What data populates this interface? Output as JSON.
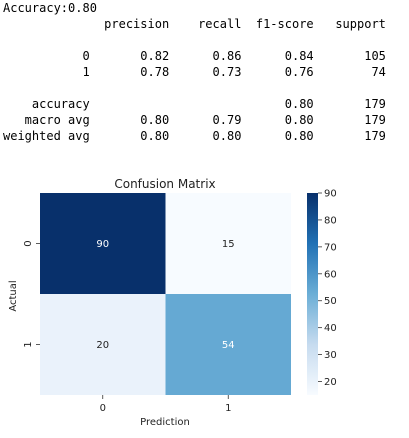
{
  "report": {
    "lines": [
      "Accuracy:0.80",
      "              precision    recall  f1-score   support",
      "",
      "           0       0.82      0.86      0.84       105",
      "           1       0.78      0.73      0.76        74",
      "",
      "    accuracy                           0.80       179",
      "   macro avg       0.80      0.79      0.80       179",
      "weighted avg       0.80      0.80      0.80       179"
    ]
  },
  "chart_data": {
    "type": "heatmap",
    "title": "Confusion Matrix",
    "xlabel": "Prediction",
    "ylabel": "Actual",
    "x_categories": [
      "0",
      "1"
    ],
    "y_categories": [
      "0",
      "1"
    ],
    "values": [
      [
        90,
        15
      ],
      [
        20,
        54
      ]
    ],
    "colormap": "Blues",
    "colorbar": {
      "min": 15,
      "max": 90,
      "ticks": [
        20,
        30,
        40,
        50,
        60,
        70,
        80,
        90
      ]
    },
    "colors": {
      "low": "#f7fbff",
      "mid": "#6baed6",
      "high": "#08306b"
    }
  }
}
